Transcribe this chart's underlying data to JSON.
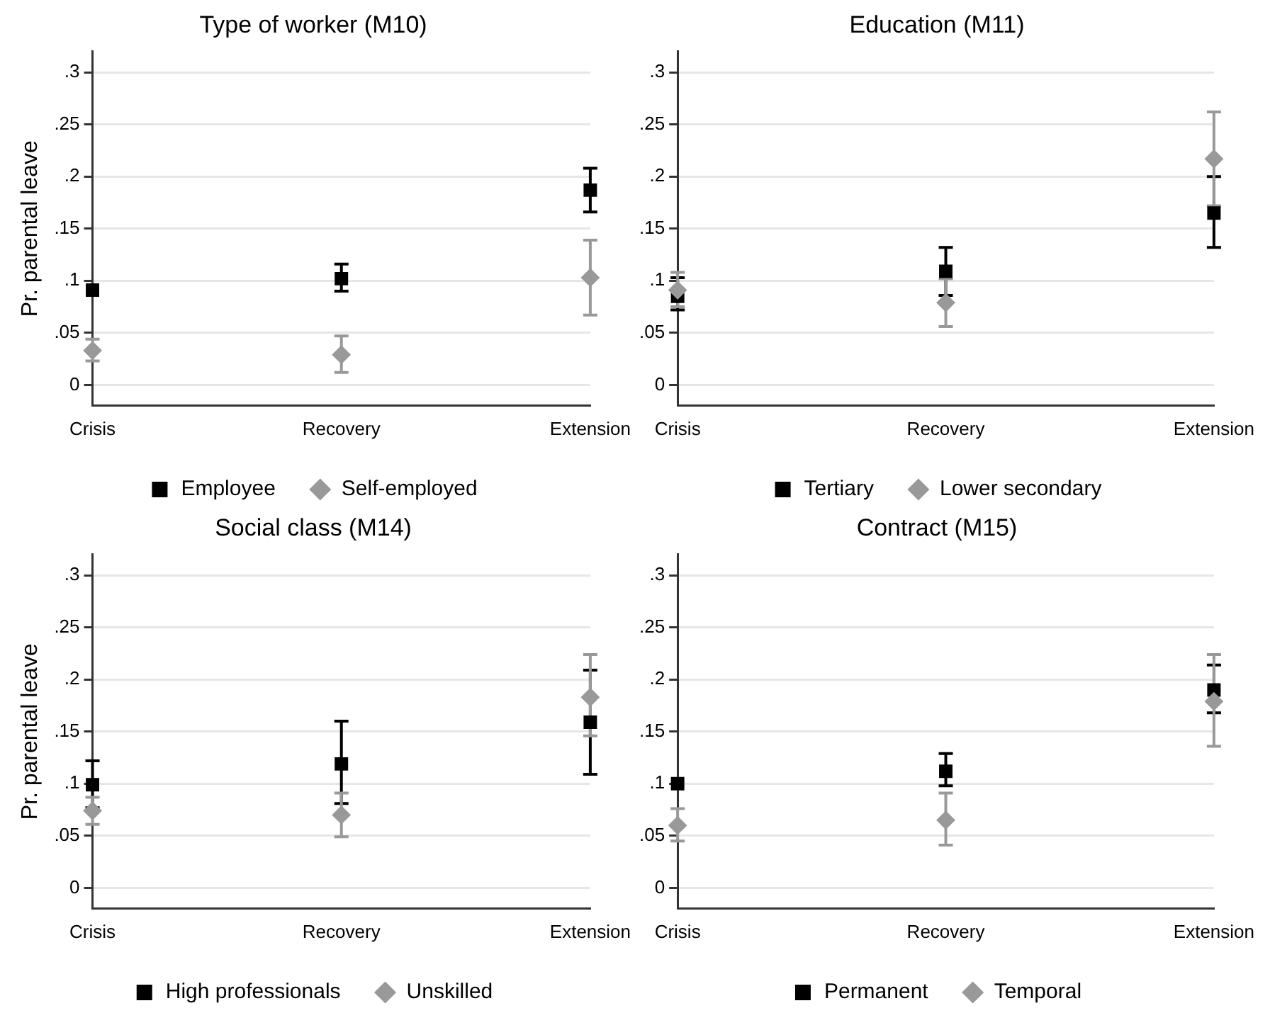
{
  "chart_data": [
    {
      "type": "scatter",
      "title": "Type of worker (M10)",
      "ylabel": "Pr. parental leave",
      "categories": [
        "Crisis",
        "Recovery",
        "Extension"
      ],
      "ylim": [
        -0.02,
        0.32
      ],
      "yticks": [
        {
          "value": 0,
          "label": "0"
        },
        {
          "value": 0.05,
          "label": ".05"
        },
        {
          "value": 0.1,
          "label": ".1"
        },
        {
          "value": 0.15,
          "label": ".15"
        },
        {
          "value": 0.2,
          "label": ".2"
        },
        {
          "value": 0.25,
          "label": ".25"
        },
        {
          "value": 0.3,
          "label": ".3"
        }
      ],
      "grid": "y",
      "legend": "bottom",
      "series": [
        {
          "name": "Employee",
          "color": "#000000",
          "marker": "square",
          "values": [
            0.091,
            0.102,
            0.187
          ],
          "errors": [
            null,
            [
              0.09,
              0.116
            ],
            [
              0.166,
              0.208
            ]
          ]
        },
        {
          "name": "Self-employed",
          "color": "#999999",
          "marker": "diamond",
          "values": [
            0.033,
            0.029,
            0.103
          ],
          "errors": [
            [
              0.023,
              0.044
            ],
            [
              0.012,
              0.047
            ],
            [
              0.067,
              0.139
            ]
          ]
        }
      ]
    },
    {
      "type": "scatter",
      "title": "Education (M11)",
      "categories": [
        "Crisis",
        "Recovery",
        "Extension"
      ],
      "ylim": [
        -0.02,
        0.32
      ],
      "yticks": [
        {
          "value": 0,
          "label": "0"
        },
        {
          "value": 0.05,
          "label": ".05"
        },
        {
          "value": 0.1,
          "label": ".1"
        },
        {
          "value": 0.15,
          "label": ".15"
        },
        {
          "value": 0.2,
          "label": ".2"
        },
        {
          "value": 0.25,
          "label": ".25"
        },
        {
          "value": 0.3,
          "label": ".3"
        }
      ],
      "grid": "y",
      "legend": "bottom",
      "series": [
        {
          "name": "Tertiary",
          "color": "#000000",
          "marker": "square",
          "values": [
            0.085,
            0.109,
            0.165
          ],
          "errors": [
            [
              0.072,
              0.103
            ],
            [
              0.086,
              0.132
            ],
            [
              0.132,
              0.2
            ]
          ]
        },
        {
          "name": "Lower secondary",
          "color": "#999999",
          "marker": "diamond",
          "values": [
            0.091,
            0.079,
            0.217
          ],
          "errors": [
            [
              0.075,
              0.108
            ],
            [
              0.056,
              0.102
            ],
            [
              0.172,
              0.262
            ]
          ]
        }
      ]
    },
    {
      "type": "scatter",
      "title": "Social class (M14)",
      "ylabel": "Pr. parental leave",
      "categories": [
        "Crisis",
        "Recovery",
        "Extension"
      ],
      "ylim": [
        -0.02,
        0.32
      ],
      "yticks": [
        {
          "value": 0,
          "label": "0"
        },
        {
          "value": 0.05,
          "label": ".05"
        },
        {
          "value": 0.1,
          "label": ".1"
        },
        {
          "value": 0.15,
          "label": ".15"
        },
        {
          "value": 0.2,
          "label": ".2"
        },
        {
          "value": 0.25,
          "label": ".25"
        },
        {
          "value": 0.3,
          "label": ".3"
        }
      ],
      "grid": "y",
      "legend": "bottom",
      "series": [
        {
          "name": "High professionals",
          "color": "#000000",
          "marker": "square",
          "values": [
            0.099,
            0.119,
            0.159
          ],
          "errors": [
            [
              0.077,
              0.122
            ],
            [
              0.081,
              0.16
            ],
            [
              0.109,
              0.209
            ]
          ]
        },
        {
          "name": "Unskilled",
          "color": "#999999",
          "marker": "diamond",
          "values": [
            0.074,
            0.07,
            0.183
          ],
          "errors": [
            [
              0.061,
              0.087
            ],
            [
              0.049,
              0.091
            ],
            [
              0.146,
              0.224
            ]
          ]
        }
      ]
    },
    {
      "type": "scatter",
      "title": "Contract (M15)",
      "categories": [
        "Crisis",
        "Recovery",
        "Extension"
      ],
      "ylim": [
        -0.02,
        0.32
      ],
      "yticks": [
        {
          "value": 0,
          "label": "0"
        },
        {
          "value": 0.05,
          "label": ".05"
        },
        {
          "value": 0.1,
          "label": ".1"
        },
        {
          "value": 0.15,
          "label": ".15"
        },
        {
          "value": 0.2,
          "label": ".2"
        },
        {
          "value": 0.25,
          "label": ".25"
        },
        {
          "value": 0.3,
          "label": ".3"
        }
      ],
      "grid": "y",
      "legend": "bottom",
      "series": [
        {
          "name": "Permanent",
          "color": "#000000",
          "marker": "square",
          "values": [
            0.1,
            0.112,
            0.19
          ],
          "errors": [
            null,
            [
              0.098,
              0.129
            ],
            [
              0.168,
              0.214
            ]
          ]
        },
        {
          "name": "Temporal",
          "color": "#999999",
          "marker": "diamond",
          "values": [
            0.06,
            0.065,
            0.179
          ],
          "errors": [
            [
              0.045,
              0.076
            ],
            [
              0.041,
              0.091
            ],
            [
              0.136,
              0.224
            ]
          ]
        }
      ]
    }
  ]
}
